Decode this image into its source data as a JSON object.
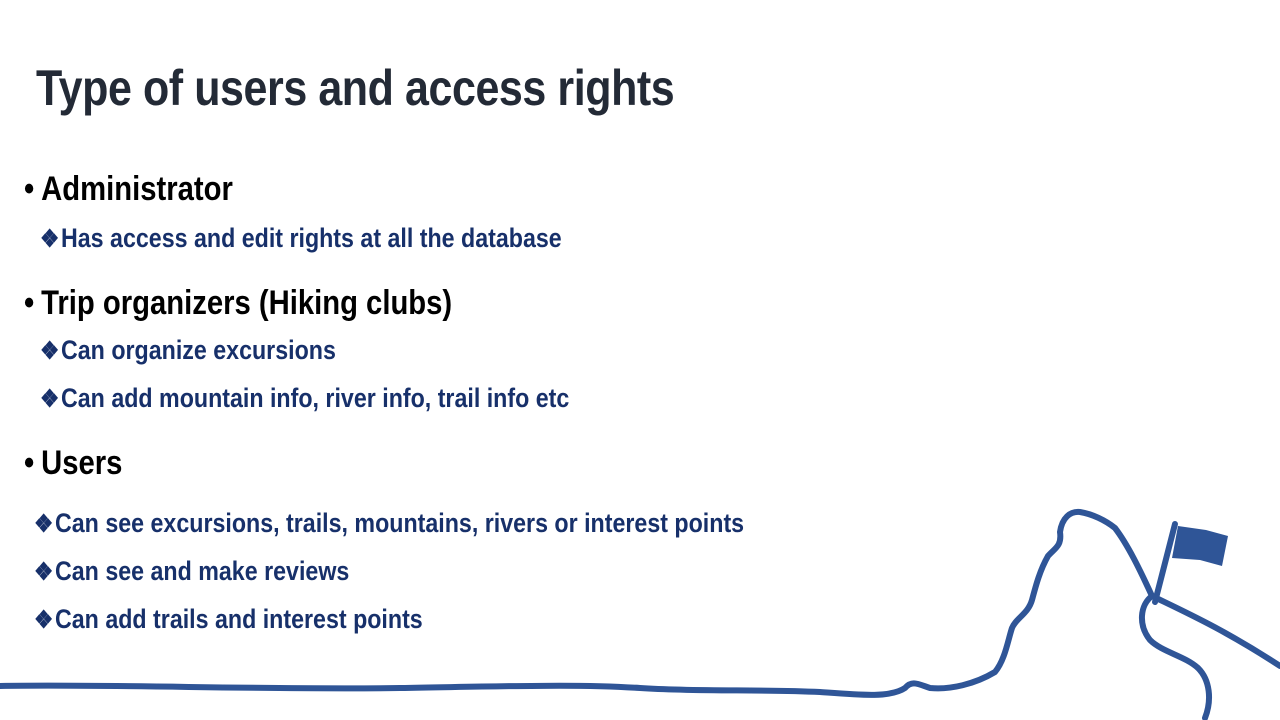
{
  "slide": {
    "title": "Type of users and access rights",
    "bullet_marker": "•",
    "sub_marker": "❖",
    "sections": [
      {
        "heading": "Administrator",
        "items": [
          "Has access and edit rights at all the database"
        ]
      },
      {
        "heading": "Trip organizers (Hiking clubs)",
        "items": [
          "Can organize excursions",
          "Can add mountain info, river info, trail info etc"
        ]
      },
      {
        "heading": "Users",
        "items": [
          "Can see excursions, trails, mountains, rivers or interest points",
          "Can see and make reviews",
          "Can add trails and interest points"
        ]
      }
    ],
    "colors": {
      "title": "#232a36",
      "heading": "#000000",
      "sub_items": "#17306a",
      "decoration": "#2f5597"
    },
    "decoration_icons": [
      "mountain-line-icon",
      "flag-icon",
      "river-line-icon"
    ]
  }
}
